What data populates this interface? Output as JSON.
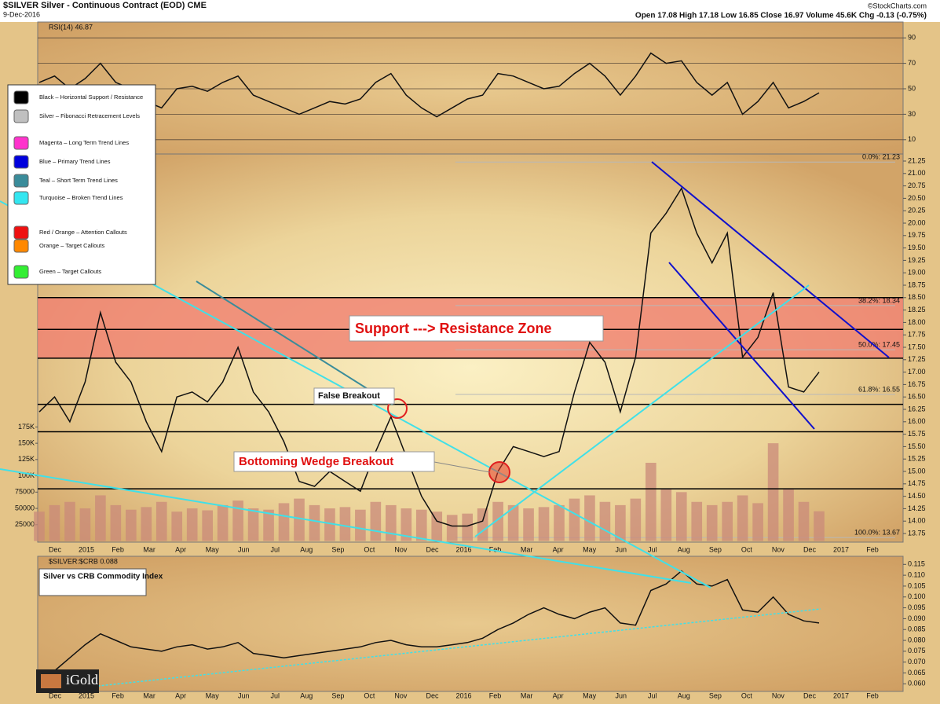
{
  "chart_data": [
    {
      "type": "line",
      "title": "RSI(14) 46.87",
      "color": "#111111",
      "values": [
        55,
        60,
        50,
        58,
        70,
        55,
        50,
        40,
        35,
        50,
        52,
        48,
        55,
        60,
        45,
        40,
        35,
        30,
        35,
        40,
        38,
        42,
        55,
        62,
        45,
        35,
        28,
        35,
        42,
        45,
        62,
        60,
        55,
        50,
        52,
        62,
        70,
        60,
        45,
        60,
        78,
        70,
        72,
        55,
        45,
        55,
        30,
        40,
        55,
        35,
        40,
        46.87
      ],
      "ylim": [
        0,
        100
      ],
      "yticks": [
        10,
        30,
        50,
        70,
        90
      ],
      "grid": true
    },
    {
      "type": "line",
      "title": "$SILVER Silver - Continuous Contract (EOD) CME",
      "subtitle": "9-Dec-2016",
      "quote": "Open 17.08 High 17.18 Low 16.85 Close 16.97 Volume 45.6K Chg -0.13 (-0.75%)",
      "source": "©StockCharts.com",
      "color": "#111111",
      "values": [
        16.2,
        16.5,
        16.0,
        16.8,
        18.2,
        17.2,
        16.8,
        16.0,
        15.4,
        16.5,
        16.6,
        16.4,
        16.8,
        17.5,
        16.6,
        16.2,
        15.6,
        14.8,
        14.7,
        15.0,
        14.8,
        14.6,
        15.4,
        16.1,
        15.3,
        14.5,
        14.0,
        13.9,
        13.9,
        14.0,
        15.0,
        15.5,
        15.4,
        15.3,
        15.4,
        16.6,
        17.6,
        17.2,
        16.2,
        17.3,
        19.8,
        20.2,
        20.7,
        19.8,
        19.2,
        19.8,
        17.3,
        17.7,
        18.6,
        16.7,
        16.6,
        17.0
      ],
      "volume": {
        "color": "#c98a7a",
        "values": [
          45000,
          55000,
          60000,
          50000,
          70000,
          55000,
          48000,
          52000,
          60000,
          45000,
          50000,
          47000,
          55000,
          62000,
          50000,
          48000,
          58000,
          65000,
          55000,
          50000,
          52000,
          48000,
          60000,
          55000,
          50000,
          48000,
          45000,
          40000,
          42000,
          50000,
          60000,
          55000,
          50000,
          52000,
          55000,
          65000,
          70000,
          60000,
          55000,
          65000,
          120000,
          80000,
          75000,
          60000,
          55000,
          60000,
          70000,
          58000,
          150000,
          80000,
          60000,
          45600
        ],
        "ylim": [
          0,
          237000
        ],
        "yticks": [
          25000,
          {
            "value": 50000,
            "label": "50000"
          },
          {
            "value": 75000,
            "label": "75000"
          },
          {
            "value": 100000,
            "label": "100K"
          },
          {
            "value": 125000,
            "label": "125K"
          },
          {
            "value": 150000,
            "label": "150K"
          },
          {
            "value": 175000,
            "label": "175K"
          }
        ]
      },
      "ylim": [
        13.6,
        21.4
      ],
      "yticks": [
        13.75,
        {
          "value": 14,
          "label": "14.00"
        },
        14.25,
        {
          "value": 14.5,
          "label": "14.50"
        },
        14.75,
        {
          "value": 15,
          "label": "15.00"
        },
        15.25,
        {
          "value": 15.5,
          "label": "15.50"
        },
        15.75,
        {
          "value": 16,
          "label": "16.00"
        },
        16.25,
        {
          "value": 16.5,
          "label": "16.50"
        },
        16.75,
        {
          "value": 17,
          "label": "17.00"
        },
        17.25,
        {
          "value": 17.5,
          "label": "17.50"
        },
        17.75,
        {
          "value": 18,
          "label": "18.00"
        },
        18.25,
        {
          "value": 18.5,
          "label": "18.50"
        },
        18.75,
        {
          "value": 19,
          "label": "19.00"
        },
        19.25,
        {
          "value": 19.5,
          "label": "19.50"
        },
        19.75,
        {
          "value": 20,
          "label": "20.00"
        },
        20.25,
        {
          "value": 20.5,
          "label": "20.50"
        },
        20.75,
        {
          "value": 21,
          "label": "21.00"
        },
        21.25
      ],
      "xticks": [
        "Dec",
        "2015",
        "Feb",
        "Mar",
        "Apr",
        "May",
        "Jun",
        "Jul",
        "Aug",
        "Sep",
        "Oct",
        "Nov",
        "Dec",
        "2016",
        "Feb",
        "Mar",
        "Apr",
        "May",
        "Jun",
        "Jul",
        "Aug",
        "Sep",
        "Oct",
        "Nov",
        "Dec",
        "2017",
        "Feb"
      ],
      "zone": [
        17.28,
        18.5
      ],
      "zone_color": "#f08070",
      "levels": [
        18.5,
        17.86,
        17.28,
        16.35,
        15.8,
        14.65
      ],
      "fib_levels": [
        {
          "value": 21.23,
          "label": "0.0%: 21.23"
        },
        {
          "value": 18.34,
          "label": "38.2%: 18.34"
        },
        {
          "value": 17.45,
          "label": "50.0%: 17.45"
        },
        {
          "value": 16.55,
          "label": "61.8%: 16.55"
        },
        {
          "value": 13.67,
          "label": "100.0%: 13.67"
        }
      ],
      "annotations": [
        "Support ---> Resistance Zone",
        "False Breakout",
        "Bottoming Wedge Breakout"
      ],
      "legend": [
        {
          "label": "Black – Horizontal Support / Resistance",
          "color": "#000000"
        },
        {
          "label": "Silver – Fibonacci Retracement Levels",
          "color": "#c0c0c0"
        },
        {
          "label": "Magenta – Long Term Trend Lines",
          "color": "#ff33cc"
        },
        {
          "label": "Blue – Primary Trend Lines",
          "color": "#0000dd"
        },
        {
          "label": "Teal – Short Term Trend Lines",
          "color": "#3a8c9a"
        },
        {
          "label": "Turquoise – Broken Trend Lines",
          "color": "#33e6f0"
        },
        {
          "label": "Red / Orange – Attention Callouts",
          "color": "#ee1111"
        },
        {
          "label": "Orange – Target Callouts",
          "color": "#ff8800"
        },
        {
          "label": "Green – Target Callouts",
          "color": "#33ee33"
        }
      ]
    },
    {
      "type": "line",
      "title": "$SILVER:$CRB 0.088",
      "note": "Silver vs CRB Commodity Index",
      "brand": "iGold",
      "color": "#111111",
      "values": [
        0.062,
        0.066,
        0.072,
        0.078,
        0.083,
        0.08,
        0.077,
        0.076,
        0.075,
        0.077,
        0.078,
        0.076,
        0.077,
        0.079,
        0.074,
        0.073,
        0.072,
        0.073,
        0.074,
        0.075,
        0.076,
        0.077,
        0.079,
        0.08,
        0.078,
        0.077,
        0.077,
        0.078,
        0.079,
        0.081,
        0.085,
        0.088,
        0.092,
        0.095,
        0.092,
        0.09,
        0.093,
        0.095,
        0.088,
        0.087,
        0.103,
        0.106,
        0.112,
        0.106,
        0.105,
        0.108,
        0.094,
        0.093,
        0.1,
        0.092,
        0.089,
        0.088
      ],
      "ylim": [
        0.0565,
        0.118
      ],
      "yticks": [
        {
          "value": 0.06,
          "label": "0.060"
        },
        0.065,
        {
          "value": 0.07,
          "label": "0.070"
        },
        0.075,
        {
          "value": 0.08,
          "label": "0.080"
        },
        0.085,
        {
          "value": 0.09,
          "label": "0.090"
        },
        0.095,
        {
          "value": 0.1,
          "label": "0.100"
        },
        0.105,
        {
          "value": 0.11,
          "label": "0.110"
        },
        0.115
      ],
      "xticks": [
        "Dec",
        "2015",
        "Feb",
        "Mar",
        "Apr",
        "May",
        "Jun",
        "Jul",
        "Aug",
        "Sep",
        "Oct",
        "Nov",
        "Dec",
        "2016",
        "Feb",
        "Mar",
        "Apr",
        "May",
        "Jun",
        "Jul",
        "Aug",
        "Sep",
        "Oct",
        "Nov",
        "Dec",
        "2017",
        "Feb"
      ]
    }
  ]
}
